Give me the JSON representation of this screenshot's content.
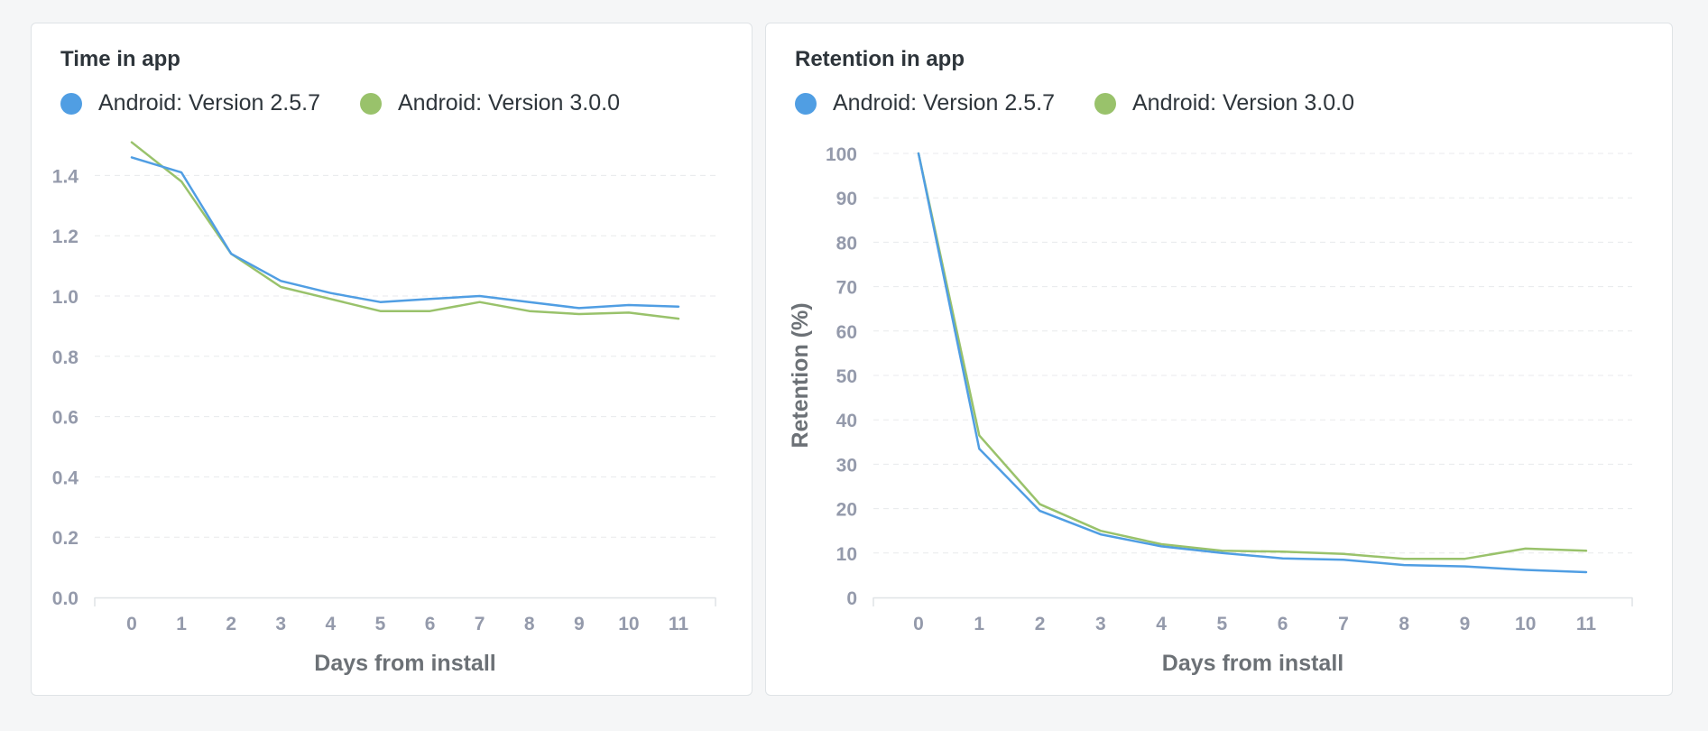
{
  "colors": {
    "series_a": "#509ee3",
    "series_b": "#99c26b"
  },
  "chart_data": [
    {
      "type": "line",
      "title": "Time in app",
      "xlabel": "Days from install",
      "ylabel": "",
      "x": [
        0,
        1,
        2,
        3,
        4,
        5,
        6,
        7,
        8,
        9,
        10,
        11
      ],
      "ylim": [
        0,
        1.5
      ],
      "yticks": [
        "0.0",
        "0.2",
        "0.4",
        "0.6",
        "0.8",
        "1.0",
        "1.2",
        "1.4"
      ],
      "legend_position": "top-left",
      "grid": true,
      "series": [
        {
          "name": "Android: Version 2.5.7",
          "values": [
            1.46,
            1.41,
            1.14,
            1.05,
            1.01,
            0.98,
            0.99,
            1.0,
            0.98,
            0.96,
            0.97,
            0.965
          ]
        },
        {
          "name": "Android: Version 3.0.0",
          "values": [
            1.51,
            1.38,
            1.14,
            1.03,
            0.99,
            0.95,
            0.95,
            0.98,
            0.95,
            0.94,
            0.945,
            0.925
          ]
        }
      ]
    },
    {
      "type": "line",
      "title": "Retention in app",
      "xlabel": "Days from install",
      "ylabel": "Retention (%)",
      "x": [
        0,
        1,
        2,
        3,
        4,
        5,
        6,
        7,
        8,
        9,
        10,
        11
      ],
      "ylim": [
        0,
        100
      ],
      "yticks": [
        "0",
        "10",
        "20",
        "30",
        "40",
        "50",
        "60",
        "70",
        "80",
        "90",
        "100"
      ],
      "legend_position": "top-left",
      "grid": true,
      "series": [
        {
          "name": "Android: Version 2.5.7",
          "values": [
            100,
            33.5,
            19.5,
            14.2,
            11.5,
            10,
            8.8,
            8.5,
            7.3,
            7,
            6.2,
            5.7
          ]
        },
        {
          "name": "Android: Version 3.0.0",
          "values": [
            100,
            36.5,
            21,
            15,
            12,
            10.5,
            10.3,
            9.8,
            8.7,
            8.7,
            11,
            10.5
          ]
        }
      ]
    }
  ]
}
